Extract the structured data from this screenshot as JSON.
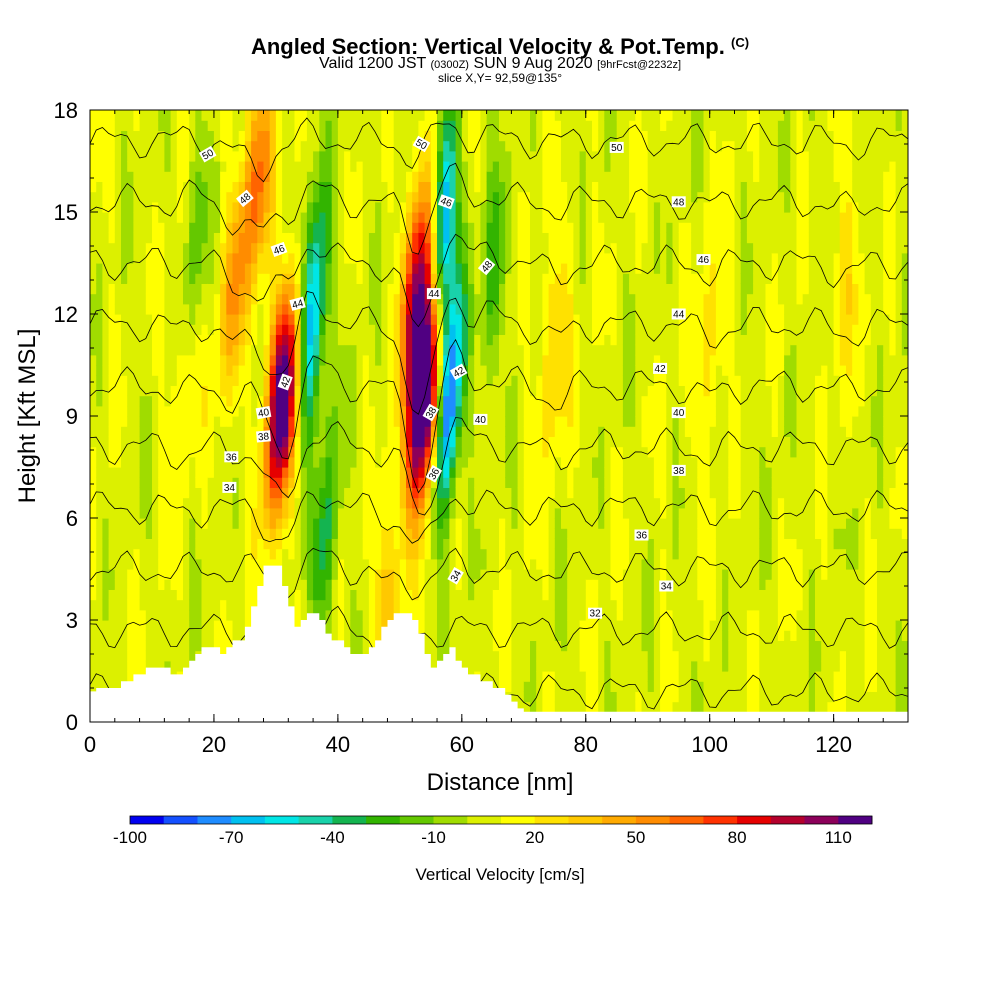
{
  "header": {
    "title_main": "Angled Section: Vertical Velocity & Pot.Temp.",
    "title_mark": "(C)",
    "valid_a": "Valid 1200 JST",
    "valid_b": "(0300Z)",
    "valid_c": "SUN 9 Aug 2020",
    "valid_d": "[9hrFcst@2232z]",
    "slice": "slice X,Y= 92,59@135°"
  },
  "colors": {
    "scale": [
      "#0000f0",
      "#1450ff",
      "#1e8cff",
      "#00c0f0",
      "#00e6e6",
      "#19d2aa",
      "#14b450",
      "#32b400",
      "#64c800",
      "#a0dc00",
      "#dcf000",
      "#ffff00",
      "#ffe100",
      "#ffc800",
      "#ffaa00",
      "#ff8c00",
      "#ff6400",
      "#ff3200",
      "#e60000",
      "#b4002d",
      "#8c005a",
      "#500082"
    ],
    "terrain": "#ffffff",
    "contour": "#000000"
  },
  "chart_data": {
    "type": "heatmap",
    "title": "Angled Section: Vertical Velocity & Pot.Temp.",
    "xlabel": "Distance [nm]",
    "ylabel": "Height [Kft MSL]",
    "xlim": [
      0,
      132
    ],
    "ylim": [
      0,
      18
    ],
    "x_ticks": [
      0,
      20,
      40,
      60,
      80,
      100,
      120
    ],
    "y_ticks": [
      0,
      3,
      6,
      9,
      12,
      15,
      18
    ],
    "colorbar": {
      "label": "Vertical Velocity [cm/s]",
      "min": -100,
      "step": 10,
      "count": 22,
      "tick_values": [
        -100,
        -70,
        -40,
        -10,
        20,
        50,
        80,
        110
      ]
    },
    "updrafts": [
      {
        "x": 31,
        "y": 9.5,
        "w": 125
      },
      {
        "x": 54,
        "y": 9.6,
        "w": 145
      },
      {
        "x": 53,
        "y": 13.0,
        "w": 90
      },
      {
        "x": 27,
        "y": 16.0,
        "w": 55
      },
      {
        "x": 23,
        "y": 12.5,
        "w": 35
      },
      {
        "x": 48,
        "y": 3.5,
        "w": 30
      },
      {
        "x": 75,
        "y": 11.0,
        "w": 28
      },
      {
        "x": 100,
        "y": 11.0,
        "w": 22
      },
      {
        "x": 122,
        "y": 13.0,
        "w": 20
      },
      {
        "x": 15,
        "y": 10.0,
        "w": 20
      }
    ],
    "downdrafts": [
      {
        "x": 36,
        "y": 12.0,
        "w": -80
      },
      {
        "x": 58,
        "y": 9.5,
        "w": -95
      },
      {
        "x": 57,
        "y": 14.5,
        "w": -85
      },
      {
        "x": 38,
        "y": 5.5,
        "w": -40
      },
      {
        "x": 17,
        "y": 14.0,
        "w": -25
      },
      {
        "x": 65,
        "y": 13.0,
        "w": -30
      }
    ],
    "terrain": [
      [
        0,
        0.9
      ],
      [
        1,
        0.9
      ],
      [
        1,
        1.0
      ],
      [
        5,
        1.0
      ],
      [
        5,
        1.2
      ],
      [
        7,
        1.2
      ],
      [
        7,
        1.4
      ],
      [
        9,
        1.4
      ],
      [
        9,
        1.6
      ],
      [
        13,
        1.6
      ],
      [
        13,
        1.4
      ],
      [
        15,
        1.4
      ],
      [
        15,
        1.6
      ],
      [
        16,
        1.6
      ],
      [
        16,
        1.8
      ],
      [
        17,
        1.8
      ],
      [
        17,
        2.0
      ],
      [
        18,
        2.0
      ],
      [
        18,
        2.2
      ],
      [
        21,
        2.2
      ],
      [
        21,
        2.0
      ],
      [
        22,
        2.0
      ],
      [
        22,
        2.2
      ],
      [
        23,
        2.2
      ],
      [
        23,
        2.4
      ],
      [
        25,
        2.4
      ],
      [
        25,
        2.8
      ],
      [
        26,
        2.8
      ],
      [
        26,
        3.4
      ],
      [
        27,
        3.4
      ],
      [
        27,
        4.0
      ],
      [
        28,
        4.0
      ],
      [
        28,
        4.6
      ],
      [
        31,
        4.6
      ],
      [
        31,
        4.0
      ],
      [
        32,
        4.0
      ],
      [
        32,
        3.4
      ],
      [
        33,
        3.4
      ],
      [
        33,
        2.8
      ],
      [
        34,
        2.8
      ],
      [
        34,
        3.0
      ],
      [
        35,
        3.0
      ],
      [
        35,
        3.2
      ],
      [
        37,
        3.2
      ],
      [
        37,
        3.0
      ],
      [
        38,
        3.0
      ],
      [
        38,
        2.6
      ],
      [
        39,
        2.6
      ],
      [
        39,
        2.4
      ],
      [
        41,
        2.4
      ],
      [
        41,
        2.2
      ],
      [
        42,
        2.2
      ],
      [
        42,
        2.0
      ],
      [
        45,
        2.0
      ],
      [
        45,
        2.2
      ],
      [
        46,
        2.2
      ],
      [
        46,
        2.4
      ],
      [
        47,
        2.4
      ],
      [
        47,
        2.8
      ],
      [
        48,
        2.8
      ],
      [
        48,
        3.0
      ],
      [
        49,
        3.0
      ],
      [
        49,
        3.2
      ],
      [
        52,
        3.2
      ],
      [
        52,
        3.0
      ],
      [
        53,
        3.0
      ],
      [
        53,
        2.6
      ],
      [
        54,
        2.6
      ],
      [
        54,
        2.0
      ],
      [
        55,
        2.0
      ],
      [
        55,
        1.6
      ],
      [
        56,
        1.6
      ],
      [
        56,
        1.8
      ],
      [
        57,
        1.8
      ],
      [
        57,
        2.0
      ],
      [
        58,
        2.0
      ],
      [
        58,
        2.2
      ],
      [
        59,
        2.2
      ],
      [
        59,
        1.8
      ],
      [
        60,
        1.8
      ],
      [
        60,
        1.6
      ],
      [
        61,
        1.6
      ],
      [
        61,
        1.4
      ],
      [
        63,
        1.4
      ],
      [
        63,
        1.2
      ],
      [
        65,
        1.2
      ],
      [
        65,
        1.0
      ],
      [
        67,
        1.0
      ],
      [
        67,
        0.8
      ],
      [
        68,
        0.8
      ],
      [
        68,
        0.6
      ],
      [
        69,
        0.6
      ],
      [
        69,
        0.4
      ],
      [
        70,
        0.4
      ],
      [
        70,
        0.3
      ],
      [
        132,
        0.3
      ]
    ],
    "theta_contours": [
      {
        "value": 32,
        "label_x": 81.5,
        "label_y": 3.2
      },
      {
        "value": 34,
        "label_x": 22.5,
        "label_y": 6.9
      },
      {
        "value": 36,
        "label_x": 22.8,
        "label_y": 7.8
      },
      {
        "value": 38,
        "label_x": 28.0,
        "label_y": 8.4
      },
      {
        "value": 40,
        "label_x": 28.0,
        "label_y": 9.1
      },
      {
        "value": 42,
        "label_x": 31.5,
        "label_y": 10.0
      },
      {
        "value": 44,
        "label_x": 33.5,
        "label_y": 12.3
      },
      {
        "value": 46,
        "label_x": 30.5,
        "label_y": 13.9
      },
      {
        "value": 48,
        "label_x": 25.0,
        "label_y": 15.4
      },
      {
        "value": 50,
        "label_x": 19.0,
        "label_y": 16.7
      }
    ],
    "contour_labels": [
      {
        "text": "50",
        "x": 19.0,
        "y": 16.7,
        "rot": -30
      },
      {
        "text": "48",
        "x": 25.0,
        "y": 15.4,
        "rot": -40
      },
      {
        "text": "46",
        "x": 30.5,
        "y": 13.9,
        "rot": -20
      },
      {
        "text": "44",
        "x": 33.5,
        "y": 12.3,
        "rot": -15
      },
      {
        "text": "42",
        "x": 31.5,
        "y": 10.0,
        "rot": -70
      },
      {
        "text": "40",
        "x": 28.0,
        "y": 9.1,
        "rot": -10
      },
      {
        "text": "38",
        "x": 28.0,
        "y": 8.4,
        "rot": -5
      },
      {
        "text": "36",
        "x": 22.8,
        "y": 7.8,
        "rot": 0
      },
      {
        "text": "34",
        "x": 22.5,
        "y": 6.9,
        "rot": 0
      },
      {
        "text": "50",
        "x": 53.5,
        "y": 17.0,
        "rot": 30
      },
      {
        "text": "46",
        "x": 57.5,
        "y": 15.3,
        "rot": 20
      },
      {
        "text": "48",
        "x": 64.0,
        "y": 13.4,
        "rot": -50
      },
      {
        "text": "44",
        "x": 55.5,
        "y": 12.6,
        "rot": 0
      },
      {
        "text": "42",
        "x": 59.5,
        "y": 10.3,
        "rot": -30
      },
      {
        "text": "38",
        "x": 55.0,
        "y": 9.1,
        "rot": -60
      },
      {
        "text": "40",
        "x": 63.0,
        "y": 8.9,
        "rot": 0
      },
      {
        "text": "36",
        "x": 55.5,
        "y": 7.3,
        "rot": -60
      },
      {
        "text": "34",
        "x": 59.0,
        "y": 4.3,
        "rot": -60
      },
      {
        "text": "50",
        "x": 85.0,
        "y": 16.9,
        "rot": 0
      },
      {
        "text": "48",
        "x": 95.0,
        "y": 15.3,
        "rot": 0
      },
      {
        "text": "46",
        "x": 99.0,
        "y": 13.6,
        "rot": 0
      },
      {
        "text": "44",
        "x": 95.0,
        "y": 12.0,
        "rot": 0
      },
      {
        "text": "42",
        "x": 92.0,
        "y": 10.4,
        "rot": 0
      },
      {
        "text": "40",
        "x": 95.0,
        "y": 9.1,
        "rot": 0
      },
      {
        "text": "38",
        "x": 95.0,
        "y": 7.4,
        "rot": 0
      },
      {
        "text": "36",
        "x": 89.0,
        "y": 5.5,
        "rot": 0
      },
      {
        "text": "34",
        "x": 93.0,
        "y": 4.0,
        "rot": 0
      },
      {
        "text": "32",
        "x": 81.5,
        "y": 3.2,
        "rot": 0
      }
    ]
  }
}
